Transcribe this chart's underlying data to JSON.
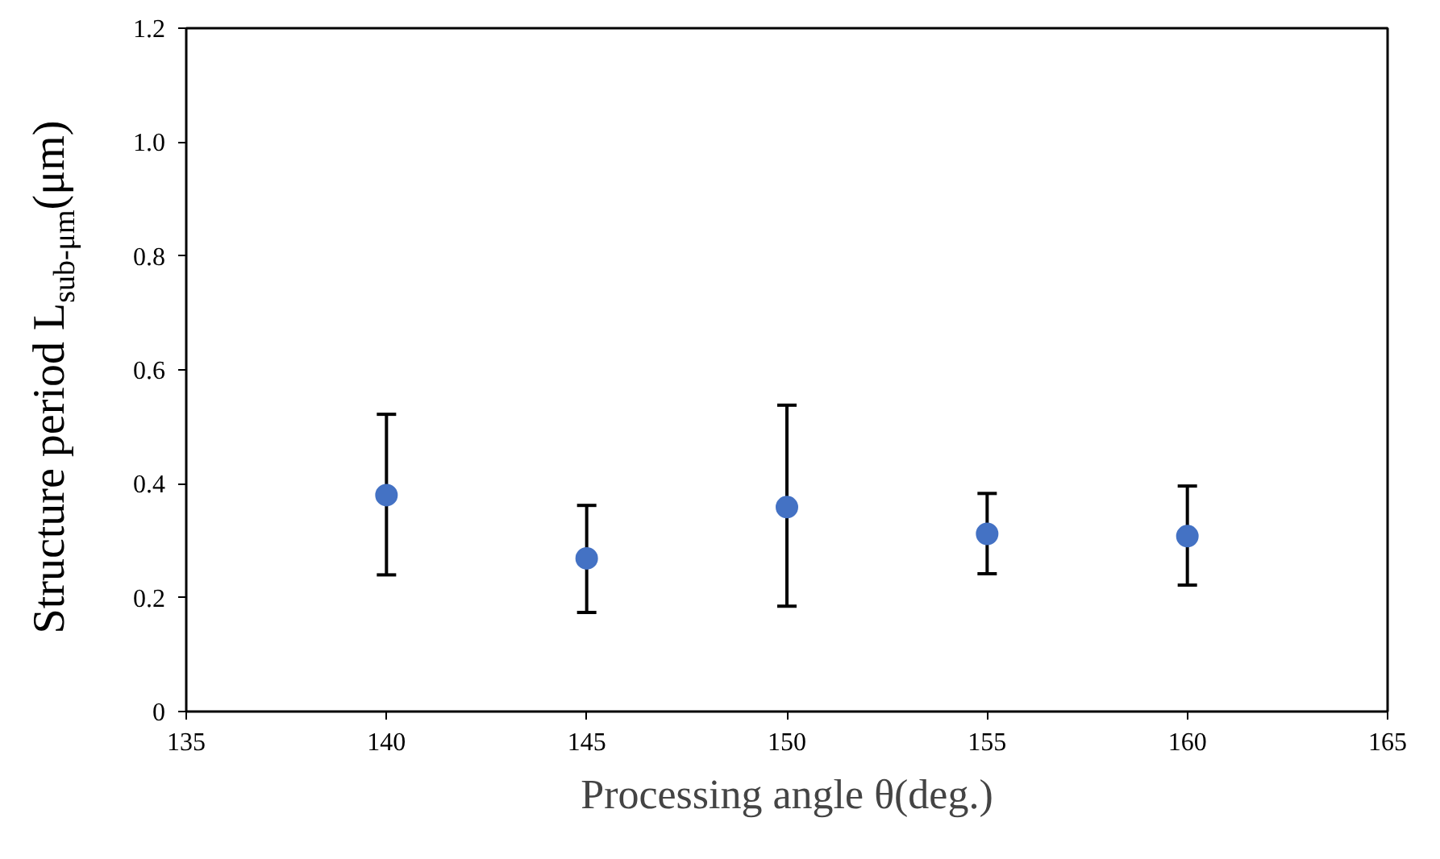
{
  "chart_data": {
    "type": "scatter",
    "xlabel": "Processing angle θ(deg.)",
    "ylabel": "Structure period L$_{sub-μm}$(μm)",
    "x": [
      140,
      145,
      150,
      155,
      160
    ],
    "series": [
      {
        "color": "#4472c4",
        "values": [
          0.38,
          0.269,
          0.359,
          0.312,
          0.308
        ],
        "errors": [
          [
            0.24,
            0.522
          ],
          [
            0.174,
            0.362
          ],
          [
            0.185,
            0.538
          ],
          [
            0.242,
            0.383
          ],
          [
            0.222,
            0.396
          ]
        ]
      }
    ],
    "xlim": [
      135,
      165
    ],
    "xticks": [
      135,
      140,
      145,
      150,
      155,
      160,
      165
    ],
    "ylim": [
      0,
      1.2
    ],
    "yticks": [
      {
        "value": 0,
        "label": "0"
      },
      {
        "value": 0.2,
        "label": "0.2"
      },
      {
        "value": 0.4,
        "label": "0.4"
      },
      {
        "value": 0.6,
        "label": "0.6"
      },
      {
        "value": 0.8,
        "label": "0.8"
      },
      {
        "value": 1.0,
        "label": "1.0"
      },
      {
        "value": 1.2,
        "label": "1.2"
      }
    ],
    "grid": false,
    "marker": "circle"
  }
}
